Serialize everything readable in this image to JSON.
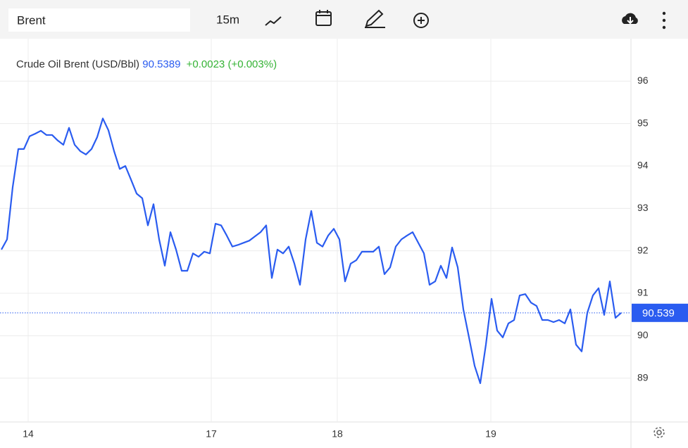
{
  "toolbar": {
    "symbol": "Brent",
    "interval": "15m"
  },
  "chart_data": {
    "type": "line",
    "name": "Crude Oil Brent (USD/Bbl)",
    "last": "90.5389",
    "change": "+0.0023 (+0.003%)",
    "last_price": 90.539,
    "series": [
      {
        "name": "Crude Oil Brent (USD/Bbl)",
        "color": "#2a5cf0",
        "values": [
          92.03,
          92.27,
          93.5,
          94.4,
          94.4,
          94.7,
          94.76,
          94.83,
          94.73,
          94.73,
          94.6,
          94.5,
          94.9,
          94.5,
          94.35,
          94.27,
          94.4,
          94.68,
          95.12,
          94.84,
          94.35,
          93.93,
          94.0,
          93.68,
          93.35,
          93.24,
          92.6,
          93.1,
          92.27,
          91.65,
          92.44,
          92.03,
          91.53,
          91.53,
          91.94,
          91.86,
          91.98,
          91.94,
          92.64,
          92.6,
          92.36,
          92.1,
          92.14,
          92.19,
          92.24,
          92.34,
          92.44,
          92.6,
          91.36,
          92.03,
          91.94,
          92.1,
          91.7,
          91.2,
          92.27,
          92.94,
          92.19,
          92.1,
          92.36,
          92.52,
          92.27,
          91.28,
          91.7,
          91.78,
          91.98,
          91.98,
          91.98,
          92.1,
          91.45,
          91.61,
          92.1,
          92.27,
          92.36,
          92.44,
          92.19,
          91.94,
          91.2,
          91.28,
          91.65,
          91.36,
          92.08,
          91.61,
          90.62,
          89.96,
          89.29,
          88.88,
          89.79,
          90.87,
          90.12,
          89.96,
          90.29,
          90.37,
          90.95,
          90.98,
          90.78,
          90.7,
          90.37,
          90.37,
          90.32,
          90.37,
          90.29,
          90.62,
          89.79,
          89.63,
          90.54,
          90.95,
          91.12,
          90.49,
          91.28,
          90.42,
          90.54
        ]
      }
    ],
    "xlim": [
      0,
      111.75
    ],
    "xticks": [
      {
        "value": 4.75,
        "label": "14"
      },
      {
        "value": 37.25,
        "label": "17"
      },
      {
        "value": 59.625,
        "label": "18"
      },
      {
        "value": 86.875,
        "label": "19"
      }
    ],
    "ylim": [
      88,
      97
    ],
    "yticks": [
      89,
      90,
      91,
      92,
      93,
      94,
      95,
      96
    ],
    "grid": true
  }
}
